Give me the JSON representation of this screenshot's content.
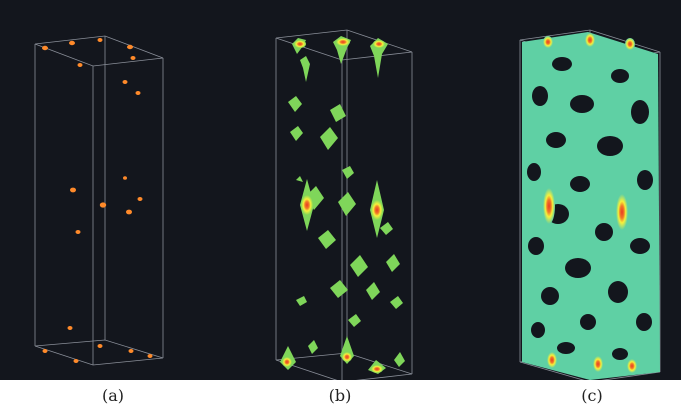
{
  "figure": {
    "panels": [
      {
        "label": "(a)",
        "icon": "sparse-points-icon"
      },
      {
        "label": "(b)",
        "icon": "isosurface-islands-icon"
      },
      {
        "label": "(c)",
        "icon": "connected-network-icon"
      }
    ],
    "colors": {
      "background": "#13161d",
      "box_edge": "#8a8f99",
      "orange": "#ff8a2a",
      "green": "#7fd65a",
      "teal": "#5fd0a4",
      "yellow": "#f7f13a",
      "red": "#e93a24"
    }
  }
}
